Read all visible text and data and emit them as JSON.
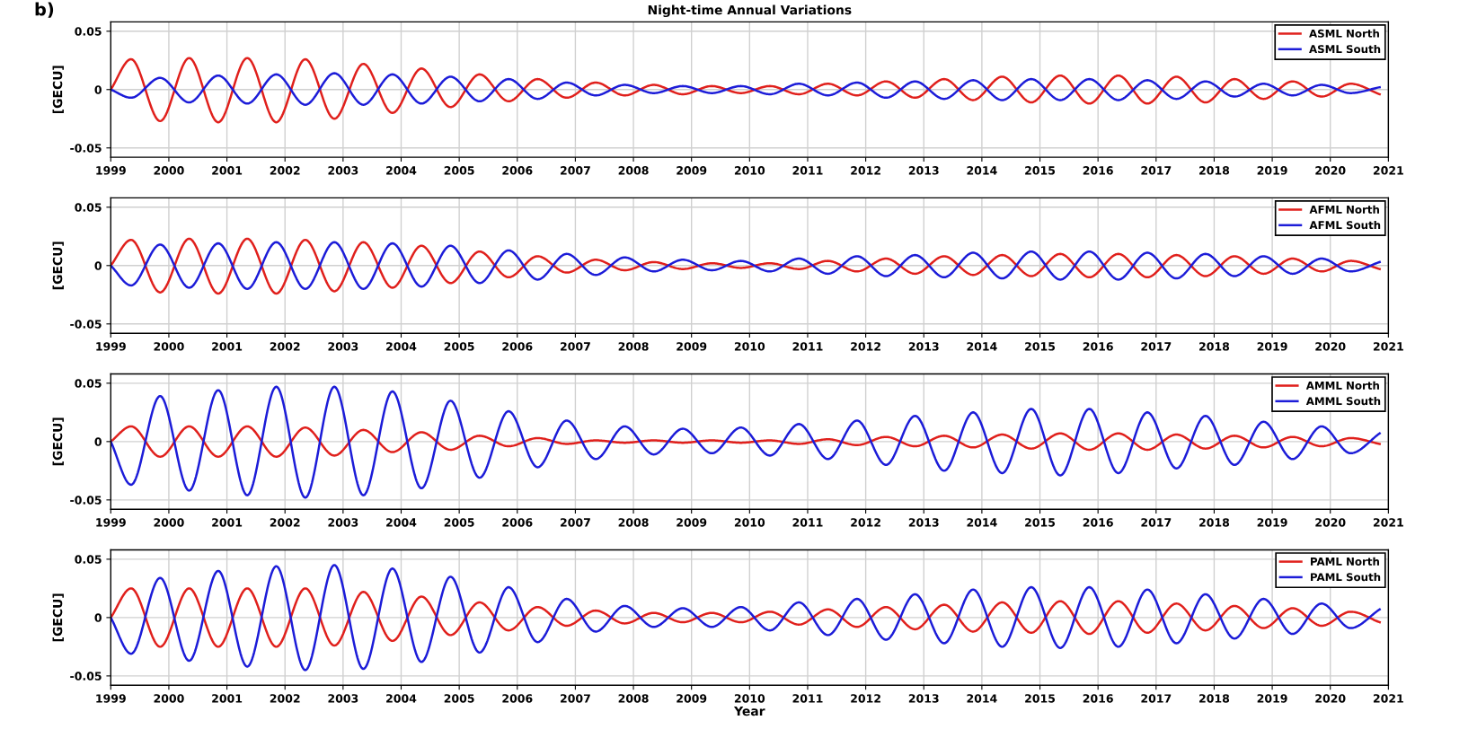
{
  "chart_data": [
    {
      "type": "line",
      "title": "Night-time Annual Variations",
      "ylabel": "[GECU]",
      "annotations": [
        "b)"
      ],
      "legend": "top right",
      "grid": true,
      "line_style": "solid",
      "marker": "none",
      "xlim": [
        1999,
        2021
      ],
      "xticks": [
        1999,
        2000,
        2001,
        2002,
        2003,
        2004,
        2005,
        2006,
        2007,
        2008,
        2009,
        2010,
        2011,
        2012,
        2013,
        2014,
        2015,
        2016,
        2017,
        2018,
        2019,
        2020,
        2021
      ],
      "ylim": [
        -0.058,
        0.058
      ],
      "yticks": [
        -0.05,
        0,
        0.05
      ],
      "x": [
        1999,
        1999.35,
        1999.85,
        2000.35,
        2000.85,
        2001.35,
        2001.85,
        2002.35,
        2002.85,
        2003.35,
        2003.85,
        2004.35,
        2004.85,
        2005.35,
        2005.85,
        2006.35,
        2006.85,
        2007.35,
        2007.85,
        2008.35,
        2008.85,
        2009.35,
        2009.85,
        2010.35,
        2010.85,
        2011.35,
        2011.85,
        2012.35,
        2012.85,
        2013.35,
        2013.85,
        2014.35,
        2014.85,
        2015.35,
        2015.85,
        2016.35,
        2016.85,
        2017.35,
        2017.85,
        2018.35,
        2018.85,
        2019.35,
        2019.85,
        2020.35,
        2020.85
      ],
      "series": [
        {
          "name": "ASML North",
          "color": "#e0201c",
          "values": [
            0,
            0.026,
            -0.027,
            0.027,
            -0.028,
            0.027,
            -0.028,
            0.026,
            -0.025,
            0.022,
            -0.02,
            0.018,
            -0.015,
            0.013,
            -0.01,
            0.009,
            -0.007,
            0.006,
            -0.005,
            0.004,
            -0.004,
            0.003,
            -0.003,
            0.003,
            -0.004,
            0.005,
            -0.005,
            0.007,
            -0.007,
            0.009,
            -0.009,
            0.011,
            -0.011,
            0.012,
            -0.012,
            0.012,
            -0.012,
            0.011,
            -0.011,
            0.009,
            -0.008,
            0.007,
            -0.006,
            0.005,
            -0.004
          ]
        },
        {
          "name": "ASML South",
          "color": "#1c1cd8",
          "values": [
            0,
            -0.007,
            0.01,
            -0.011,
            0.012,
            -0.012,
            0.013,
            -0.013,
            0.014,
            -0.013,
            0.013,
            -0.012,
            0.011,
            -0.01,
            0.009,
            -0.008,
            0.006,
            -0.005,
            0.004,
            -0.003,
            0.003,
            -0.003,
            0.003,
            -0.004,
            0.005,
            -0.005,
            0.006,
            -0.007,
            0.007,
            -0.008,
            0.008,
            -0.009,
            0.009,
            -0.009,
            0.009,
            -0.009,
            0.008,
            -0.008,
            0.007,
            -0.006,
            0.005,
            -0.005,
            0.004,
            -0.003,
            0.002
          ]
        }
      ]
    },
    {
      "type": "line",
      "ylabel": "[GECU]",
      "legend": "top right",
      "grid": true,
      "line_style": "solid",
      "marker": "none",
      "xlim": [
        1999,
        2021
      ],
      "xticks": [
        1999,
        2000,
        2001,
        2002,
        2003,
        2004,
        2005,
        2006,
        2007,
        2008,
        2009,
        2010,
        2011,
        2012,
        2013,
        2014,
        2015,
        2016,
        2017,
        2018,
        2019,
        2020,
        2021
      ],
      "ylim": [
        -0.058,
        0.058
      ],
      "yticks": [
        -0.05,
        0,
        0.05
      ],
      "x": [
        1999,
        1999.35,
        1999.85,
        2000.35,
        2000.85,
        2001.35,
        2001.85,
        2002.35,
        2002.85,
        2003.35,
        2003.85,
        2004.35,
        2004.85,
        2005.35,
        2005.85,
        2006.35,
        2006.85,
        2007.35,
        2007.85,
        2008.35,
        2008.85,
        2009.35,
        2009.85,
        2010.35,
        2010.85,
        2011.35,
        2011.85,
        2012.35,
        2012.85,
        2013.35,
        2013.85,
        2014.35,
        2014.85,
        2015.35,
        2015.85,
        2016.35,
        2016.85,
        2017.35,
        2017.85,
        2018.35,
        2018.85,
        2019.35,
        2019.85,
        2020.35,
        2020.85
      ],
      "series": [
        {
          "name": "AFML North",
          "color": "#e0201c",
          "values": [
            0,
            0.022,
            -0.023,
            0.023,
            -0.024,
            0.023,
            -0.024,
            0.022,
            -0.022,
            0.02,
            -0.019,
            0.017,
            -0.015,
            0.012,
            -0.01,
            0.008,
            -0.006,
            0.005,
            -0.004,
            0.003,
            -0.003,
            0.002,
            -0.002,
            0.002,
            -0.003,
            0.004,
            -0.005,
            0.006,
            -0.007,
            0.008,
            -0.008,
            0.009,
            -0.009,
            0.01,
            -0.01,
            0.01,
            -0.01,
            0.009,
            -0.009,
            0.008,
            -0.007,
            0.006,
            -0.005,
            0.004,
            -0.003
          ]
        },
        {
          "name": "AFML South",
          "color": "#1c1cd8",
          "values": [
            0,
            -0.017,
            0.018,
            -0.019,
            0.019,
            -0.02,
            0.02,
            -0.02,
            0.02,
            -0.02,
            0.019,
            -0.018,
            0.017,
            -0.015,
            0.013,
            -0.012,
            0.01,
            -0.008,
            0.007,
            -0.005,
            0.005,
            -0.004,
            0.004,
            -0.005,
            0.006,
            -0.007,
            0.008,
            -0.009,
            0.009,
            -0.01,
            0.011,
            -0.011,
            0.012,
            -0.012,
            0.012,
            -0.012,
            0.011,
            -0.011,
            0.01,
            -0.009,
            0.008,
            -0.007,
            0.006,
            -0.005,
            0.003
          ]
        }
      ]
    },
    {
      "type": "line",
      "ylabel": "[GECU]",
      "legend": "top right",
      "grid": true,
      "line_style": "solid",
      "marker": "none",
      "xlim": [
        1999,
        2021
      ],
      "xticks": [
        1999,
        2000,
        2001,
        2002,
        2003,
        2004,
        2005,
        2006,
        2007,
        2008,
        2009,
        2010,
        2011,
        2012,
        2013,
        2014,
        2015,
        2016,
        2017,
        2018,
        2019,
        2020,
        2021
      ],
      "ylim": [
        -0.058,
        0.058
      ],
      "yticks": [
        -0.05,
        0,
        0.05
      ],
      "x": [
        1999,
        1999.35,
        1999.85,
        2000.35,
        2000.85,
        2001.35,
        2001.85,
        2002.35,
        2002.85,
        2003.35,
        2003.85,
        2004.35,
        2004.85,
        2005.35,
        2005.85,
        2006.35,
        2006.85,
        2007.35,
        2007.85,
        2008.35,
        2008.85,
        2009.35,
        2009.85,
        2010.35,
        2010.85,
        2011.35,
        2011.85,
        2012.35,
        2012.85,
        2013.35,
        2013.85,
        2014.35,
        2014.85,
        2015.35,
        2015.85,
        2016.35,
        2016.85,
        2017.35,
        2017.85,
        2018.35,
        2018.85,
        2019.35,
        2019.85,
        2020.35,
        2020.85
      ],
      "series": [
        {
          "name": "AMML North",
          "color": "#e0201c",
          "values": [
            0,
            0.013,
            -0.013,
            0.013,
            -0.013,
            0.013,
            -0.013,
            0.012,
            -0.012,
            0.01,
            -0.009,
            0.008,
            -0.007,
            0.005,
            -0.004,
            0.003,
            -0.002,
            0.001,
            -0.001,
            0.001,
            -0.001,
            0.001,
            -0.001,
            0.001,
            -0.002,
            0.002,
            -0.003,
            0.004,
            -0.004,
            0.005,
            -0.005,
            0.006,
            -0.006,
            0.007,
            -0.007,
            0.007,
            -0.007,
            0.006,
            -0.006,
            0.005,
            -0.005,
            0.004,
            -0.004,
            0.003,
            -0.002
          ]
        },
        {
          "name": "AMML South",
          "color": "#1c1cd8",
          "values": [
            0,
            -0.037,
            0.039,
            -0.042,
            0.044,
            -0.046,
            0.047,
            -0.048,
            0.047,
            -0.046,
            0.043,
            -0.04,
            0.035,
            -0.031,
            0.026,
            -0.022,
            0.018,
            -0.015,
            0.013,
            -0.011,
            0.011,
            -0.01,
            0.012,
            -0.012,
            0.015,
            -0.015,
            0.018,
            -0.02,
            0.022,
            -0.025,
            0.025,
            -0.027,
            0.028,
            -0.029,
            0.028,
            -0.027,
            0.025,
            -0.023,
            0.022,
            -0.02,
            0.017,
            -0.015,
            0.013,
            -0.01,
            0.007
          ]
        }
      ]
    },
    {
      "type": "line",
      "ylabel": "[GECU]",
      "xlabel": "Year",
      "legend": "top right",
      "grid": true,
      "line_style": "solid",
      "marker": "none",
      "xlim": [
        1999,
        2021
      ],
      "xticks": [
        1999,
        2000,
        2001,
        2002,
        2003,
        2004,
        2005,
        2006,
        2007,
        2008,
        2009,
        2010,
        2011,
        2012,
        2013,
        2014,
        2015,
        2016,
        2017,
        2018,
        2019,
        2020,
        2021
      ],
      "ylim": [
        -0.058,
        0.058
      ],
      "yticks": [
        -0.05,
        0,
        0.05
      ],
      "x": [
        1999,
        1999.35,
        1999.85,
        2000.35,
        2000.85,
        2001.35,
        2001.85,
        2002.35,
        2002.85,
        2003.35,
        2003.85,
        2004.35,
        2004.85,
        2005.35,
        2005.85,
        2006.35,
        2006.85,
        2007.35,
        2007.85,
        2008.35,
        2008.85,
        2009.35,
        2009.85,
        2010.35,
        2010.85,
        2011.35,
        2011.85,
        2012.35,
        2012.85,
        2013.35,
        2013.85,
        2014.35,
        2014.85,
        2015.35,
        2015.85,
        2016.35,
        2016.85,
        2017.35,
        2017.85,
        2018.35,
        2018.85,
        2019.35,
        2019.85,
        2020.35,
        2020.85
      ],
      "series": [
        {
          "name": "PAML North",
          "color": "#e0201c",
          "values": [
            0,
            0.025,
            -0.025,
            0.025,
            -0.025,
            0.025,
            -0.025,
            0.025,
            -0.024,
            0.022,
            -0.02,
            0.018,
            -0.015,
            0.013,
            -0.011,
            0.009,
            -0.007,
            0.006,
            -0.005,
            0.004,
            -0.004,
            0.004,
            -0.004,
            0.005,
            -0.006,
            0.007,
            -0.008,
            0.009,
            -0.01,
            0.011,
            -0.012,
            0.013,
            -0.013,
            0.014,
            -0.014,
            0.014,
            -0.013,
            0.012,
            -0.011,
            0.01,
            -0.009,
            0.008,
            -0.007,
            0.005,
            -0.004
          ]
        },
        {
          "name": "PAML South",
          "color": "#1c1cd8",
          "values": [
            0,
            -0.031,
            0.034,
            -0.037,
            0.04,
            -0.042,
            0.044,
            -0.045,
            0.045,
            -0.044,
            0.042,
            -0.038,
            0.035,
            -0.03,
            0.026,
            -0.021,
            0.016,
            -0.012,
            0.01,
            -0.008,
            0.008,
            -0.008,
            0.009,
            -0.011,
            0.013,
            -0.015,
            0.016,
            -0.019,
            0.02,
            -0.022,
            0.024,
            -0.025,
            0.026,
            -0.026,
            0.026,
            -0.025,
            0.024,
            -0.022,
            0.02,
            -0.018,
            0.016,
            -0.014,
            0.012,
            -0.009,
            0.007
          ]
        }
      ]
    }
  ]
}
